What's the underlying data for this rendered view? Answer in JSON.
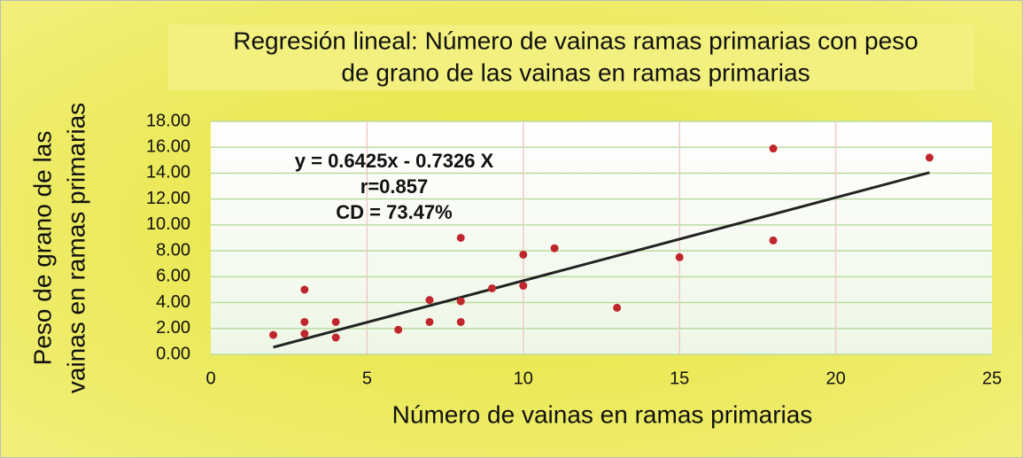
{
  "chart_data": {
    "type": "scatter",
    "title": [
      "Regresión lineal: Número de vainas  ramas primarias con peso",
      "de grano de las vainas en ramas primarias"
    ],
    "x_label": "Número de vainas en ramas primarias",
    "y_label": [
      "Peso de grano de las",
      "vainas en  ramas primarias"
    ],
    "annotations": [
      "y = 0.6425x - 0.7326 X",
      "r=0.857",
      "CD = 73.47%"
    ],
    "x": [
      2,
      3,
      3,
      3,
      4,
      4,
      6,
      7,
      7,
      8,
      8,
      8,
      9,
      10,
      10,
      11,
      13,
      15,
      18,
      18,
      23
    ],
    "values": [
      1.5,
      5.0,
      2.5,
      1.6,
      2.5,
      1.3,
      1.9,
      4.2,
      2.5,
      9.0,
      4.1,
      2.5,
      5.1,
      7.7,
      5.3,
      8.2,
      3.6,
      7.5,
      15.9,
      8.8,
      15.2
    ],
    "color": "#c0272d",
    "trendline": {
      "x": [
        2,
        23
      ],
      "values": [
        0.55,
        14.04
      ],
      "color": "#222222"
    },
    "xlim": [
      0,
      25
    ],
    "xticks": [
      0,
      5,
      10,
      15,
      20,
      25
    ],
    "ylim": [
      0,
      18
    ],
    "yticks": [
      {
        "value": 0,
        "label": "0.00"
      },
      {
        "value": 2,
        "label": "2.00"
      },
      {
        "value": 4,
        "label": "4.00"
      },
      {
        "value": 6,
        "label": "6.00"
      },
      {
        "value": 8,
        "label": "8.00"
      },
      {
        "value": 10,
        "label": "10.00"
      },
      {
        "value": 12,
        "label": "12.00"
      },
      {
        "value": 14,
        "label": "14.00"
      },
      {
        "value": 16,
        "label": "16.00"
      },
      {
        "value": 18,
        "label": "18.00"
      }
    ],
    "grid": true
  }
}
